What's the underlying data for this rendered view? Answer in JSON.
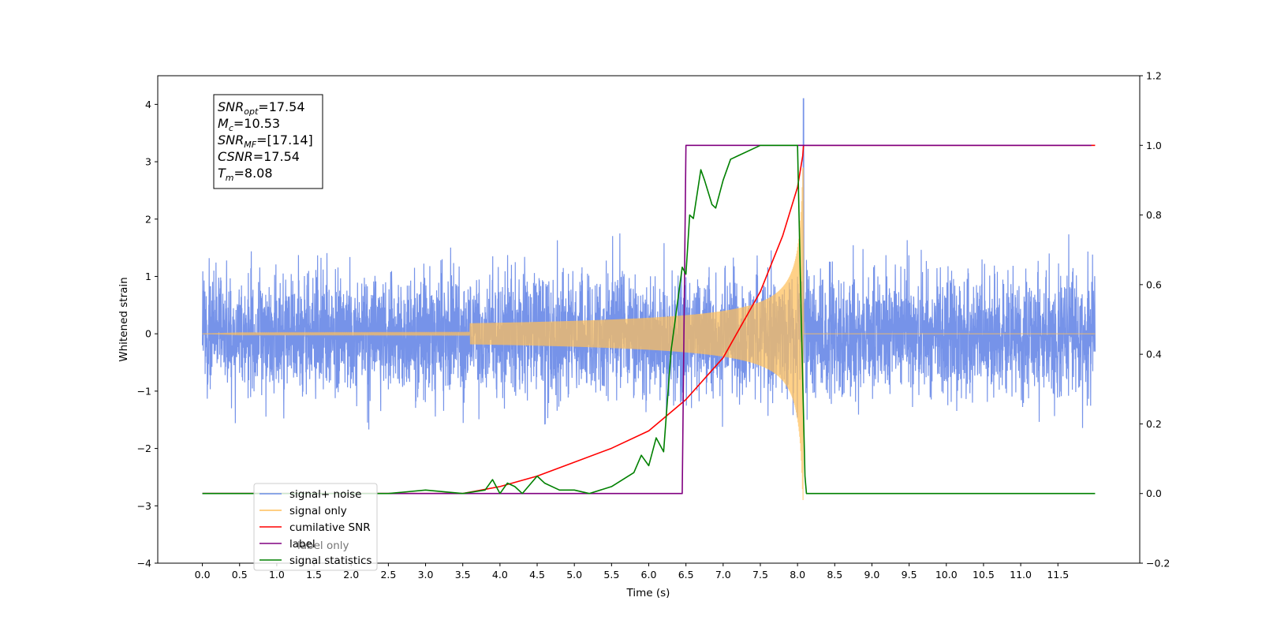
{
  "chart_data": {
    "type": "line",
    "xlabel": "Time (s)",
    "ylabel": "Whitened strain",
    "xlim": [
      -0.6,
      12.6
    ],
    "ylim": [
      -4,
      4.5
    ],
    "y2lim": [
      -0.2,
      1.2
    ],
    "x_ticks": [
      0.0,
      0.5,
      1.0,
      1.5,
      2.0,
      2.5,
      3.0,
      3.5,
      4.0,
      4.5,
      5.0,
      5.5,
      6.0,
      6.5,
      7.0,
      7.5,
      8.0,
      8.5,
      9.0,
      9.5,
      10.0,
      10.5,
      11.0,
      11.5
    ],
    "x_tick_labels": [
      "0.0",
      "0.5",
      "1.0",
      "1.5",
      "2.0",
      "2.5",
      "3.0",
      "3.5",
      "4.0",
      "4.5",
      "5.0",
      "5.5",
      "6.0",
      "6.5",
      "7.0",
      "7.5",
      "8.0",
      "8.5",
      "9.0",
      "9.5",
      "10.0",
      "10.5",
      "11.0",
      "11.5"
    ],
    "y_ticks": [
      -4,
      -3,
      -2,
      -1,
      0,
      1,
      2,
      3,
      4
    ],
    "y_tick_labels": [
      "−4",
      "−3",
      "−2",
      "−1",
      "0",
      "1",
      "2",
      "3",
      "4"
    ],
    "y2_ticks": [
      -0.2,
      0.0,
      0.2,
      0.4,
      0.6,
      0.8,
      1.0,
      1.2
    ],
    "y2_tick_labels": [
      "−0.2",
      "0.0",
      "0.2",
      "0.4",
      "0.6",
      "0.8",
      "1.0",
      "1.2"
    ],
    "grid": false,
    "legend_placement": "lower-left",
    "noise": {
      "t_start": 0.0,
      "t_end": 12.0,
      "typical_amplitude": 1.8,
      "peak_max": 4.1,
      "peak_max_time": 8.08
    },
    "chirp": {
      "t_start": 0.0,
      "merger_time": 8.08,
      "end_time": 12.0,
      "peak_amplitude": 2.9
    },
    "series": [
      {
        "name": "signal+ noise",
        "axis": "left",
        "color": "#6f8de8",
        "style": "noise"
      },
      {
        "name": "signal only",
        "axis": "left",
        "color": "#ffbf5a",
        "style": "chirp"
      },
      {
        "name": "cumilative SNR",
        "axis": "right",
        "color": "#ff0000",
        "x": [
          0.0,
          3.5,
          4.0,
          4.5,
          5.0,
          5.5,
          6.0,
          6.5,
          7.0,
          7.5,
          7.8,
          8.0,
          8.07,
          8.08,
          12.0
        ],
        "y": [
          0.0,
          0.0,
          0.02,
          0.05,
          0.09,
          0.13,
          0.18,
          0.27,
          0.39,
          0.58,
          0.74,
          0.88,
          0.97,
          1.0,
          1.0
        ]
      },
      {
        "name": "label",
        "axis": "right",
        "color": "#800080",
        "x": [
          0.0,
          6.45,
          6.5,
          8.06,
          8.08,
          11.95
        ],
        "y": [
          0.0,
          0.0,
          1.0,
          1.0,
          1.0,
          1.0
        ]
      },
      {
        "name": "signal statistics",
        "axis": "right",
        "color": "#008000",
        "x": [
          0.0,
          2.5,
          3.0,
          3.5,
          3.8,
          3.9,
          4.0,
          4.1,
          4.2,
          4.3,
          4.5,
          4.6,
          4.8,
          5.0,
          5.2,
          5.5,
          5.8,
          5.9,
          6.0,
          6.1,
          6.2,
          6.3,
          6.35,
          6.45,
          6.5,
          6.55,
          6.6,
          6.7,
          6.75,
          6.85,
          6.9,
          7.0,
          7.1,
          7.2,
          7.5,
          7.7,
          8.0,
          8.05,
          8.1,
          8.12,
          12.0
        ],
        "y": [
          0.0,
          0.0,
          0.01,
          0.0,
          0.01,
          0.04,
          0.0,
          0.03,
          0.02,
          0.0,
          0.05,
          0.03,
          0.01,
          0.01,
          0.0,
          0.02,
          0.06,
          0.11,
          0.08,
          0.16,
          0.12,
          0.41,
          0.49,
          0.65,
          0.63,
          0.8,
          0.79,
          0.93,
          0.9,
          0.83,
          0.82,
          0.9,
          0.96,
          0.97,
          1.0,
          1.0,
          1.0,
          0.5,
          0.05,
          0.0,
          0.0
        ]
      }
    ],
    "legend": {
      "entries": [
        "signal+ noise",
        "signal only",
        "cumilative SNR",
        "label",
        "signal statistics"
      ],
      "hidden_text": "label only"
    },
    "annotation": {
      "lines": [
        {
          "base": "SNR",
          "sub": "opt",
          "value": "=17.54"
        },
        {
          "base": "M",
          "sub": "c",
          "value": "=10.53"
        },
        {
          "base": "SNR",
          "sub": "MF",
          "value": "=[17.14]"
        },
        {
          "base": "CSNR",
          "sub": "",
          "value": "=17.54"
        },
        {
          "base": "T",
          "sub": "m",
          "value": "=8.08"
        }
      ]
    }
  }
}
